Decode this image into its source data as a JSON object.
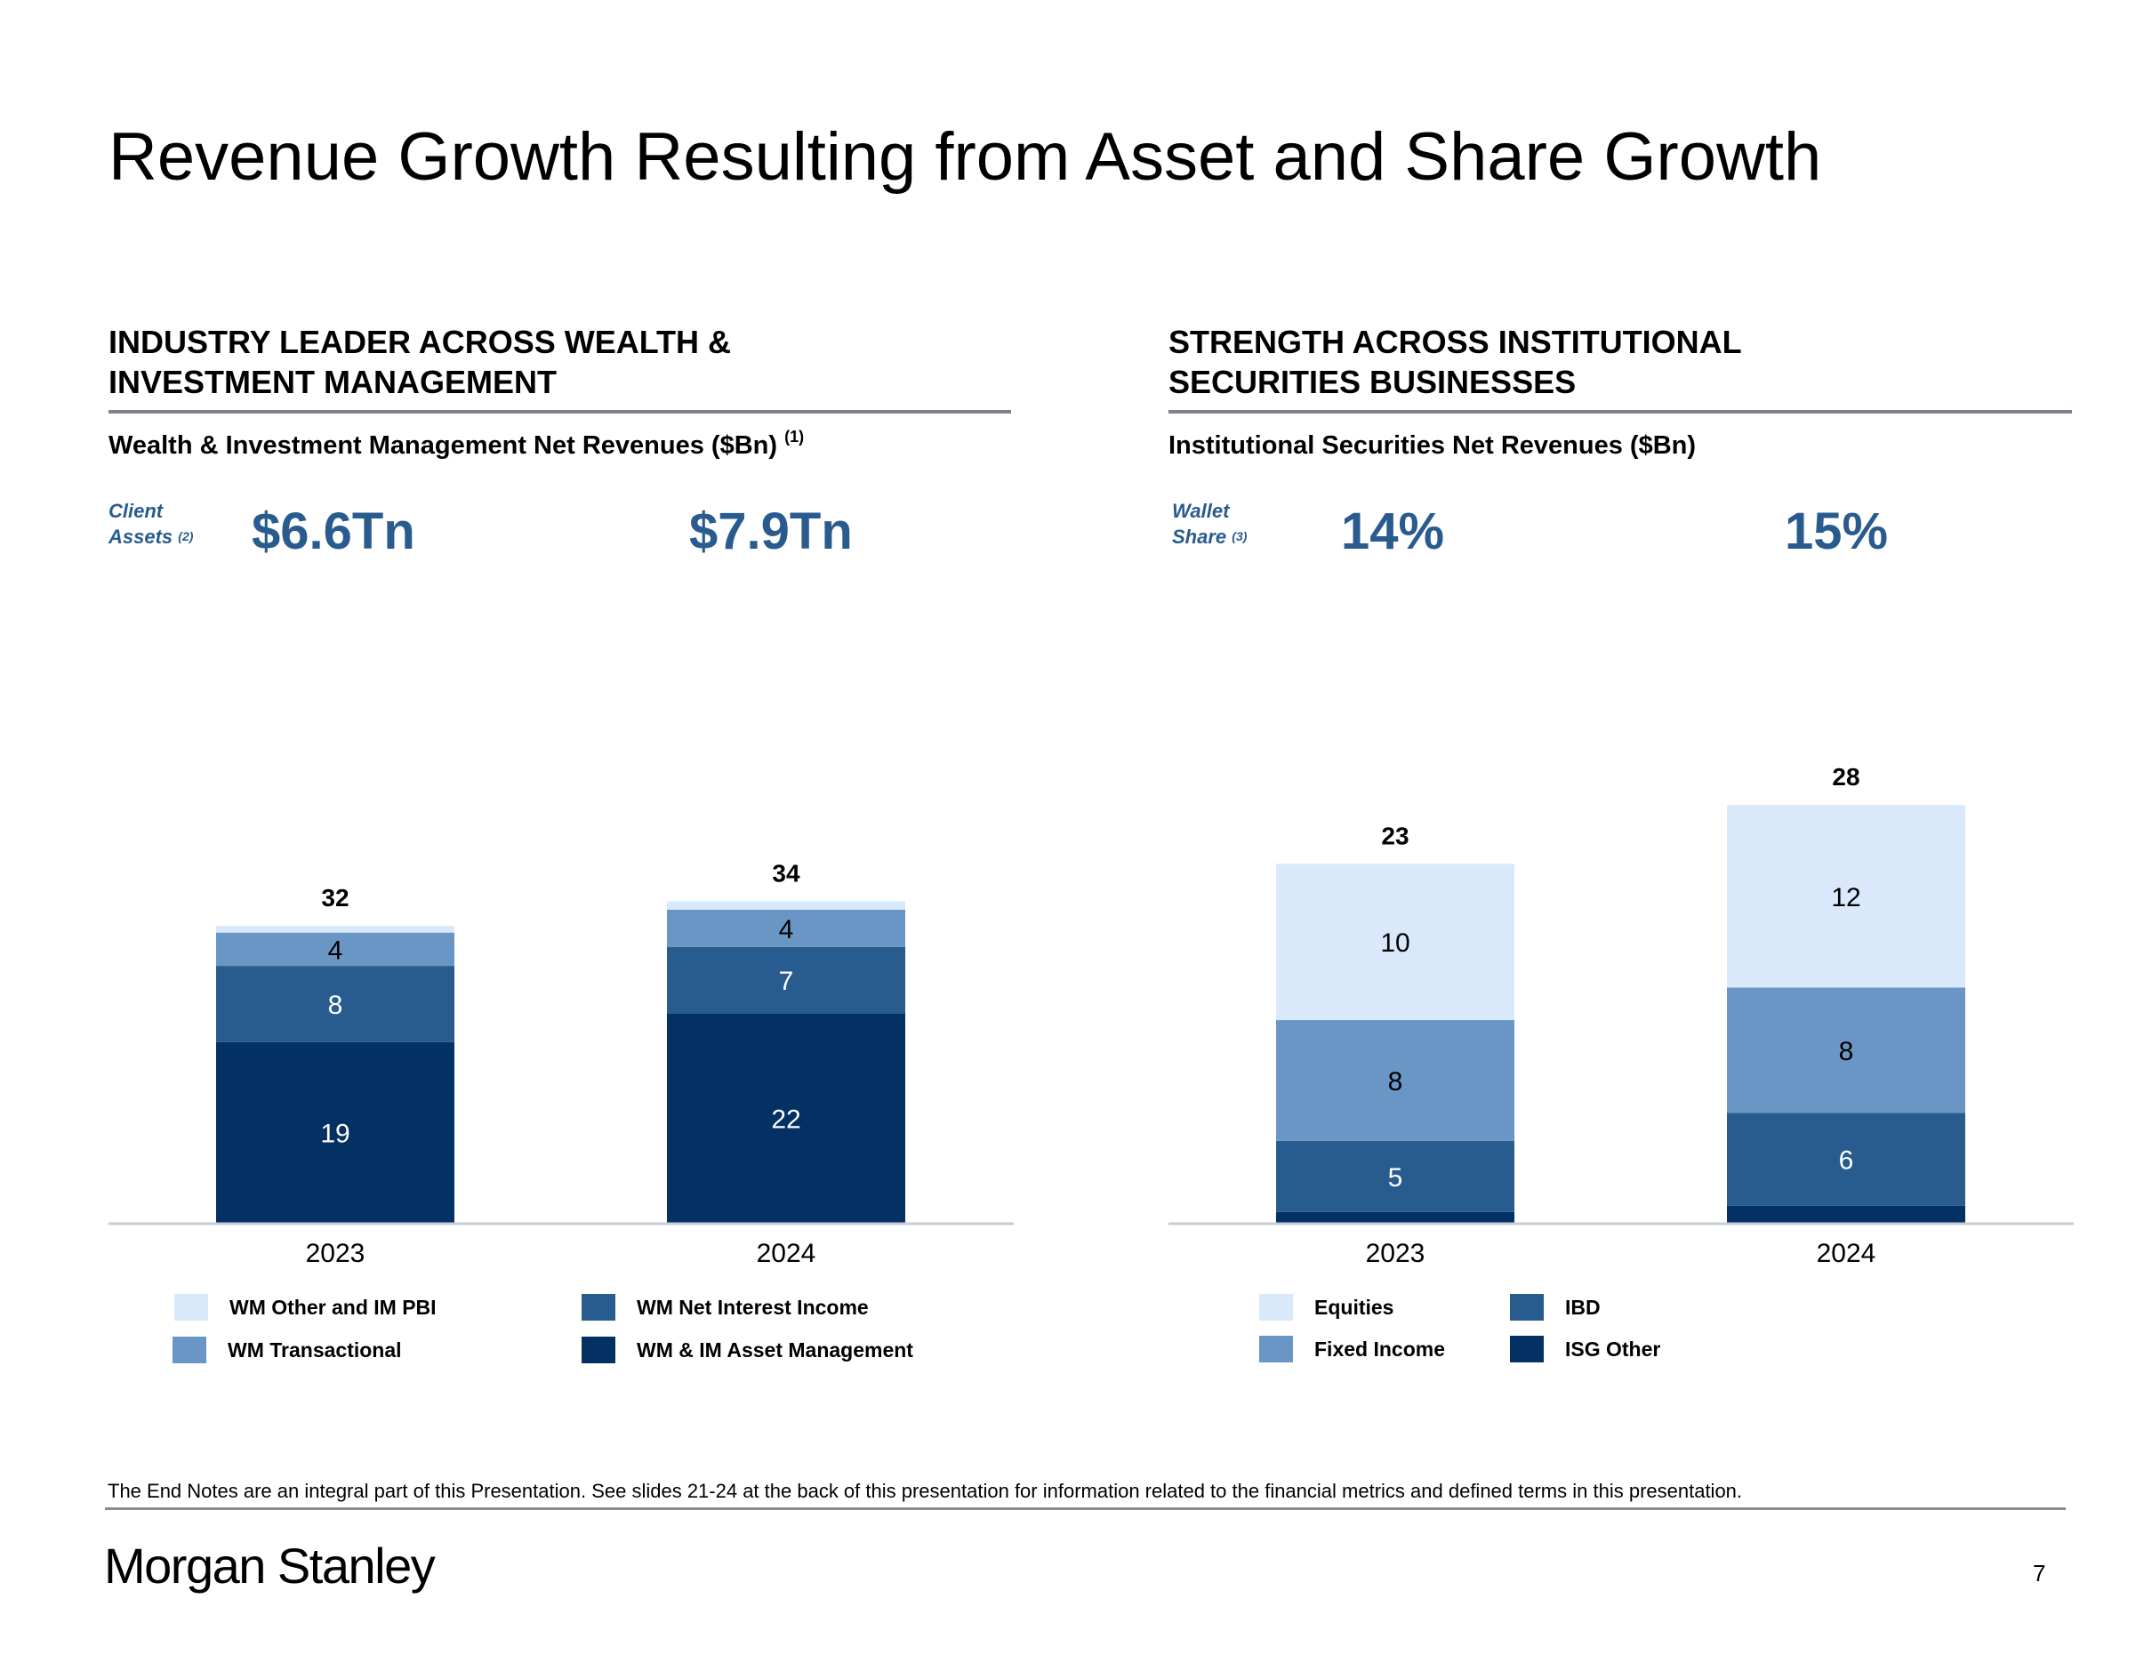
{
  "page": {
    "title": "Revenue Growth Resulting from Asset and Share Growth",
    "footnote": "The End Notes are an integral part of this Presentation. See slides 21-24 at the back of this presentation for information related to the financial metrics and defined terms in this presentation.",
    "brand": "Morgan Stanley",
    "page_number": "7"
  },
  "left": {
    "heading_line1": "INDUSTRY LEADER ACROSS WEALTH &",
    "heading_line2": "INVESTMENT MANAGEMENT",
    "subheading": "Wealth & Investment Management Net Revenues ($Bn)",
    "subheading_note": "(1)",
    "kpi_label_line1": "Client",
    "kpi_label_line2": "Assets",
    "kpi_label_note": "(2)",
    "kpi_values": [
      "$6.6Tn",
      "$7.9Tn"
    ]
  },
  "right": {
    "heading_line1": "STRENGTH ACROSS INSTITUTIONAL",
    "heading_line2": "SECURITIES BUSINESSES",
    "subheading": "Institutional Securities Net Revenues ($Bn)",
    "kpi_label_line1": "Wallet",
    "kpi_label_line2": "Share",
    "kpi_label_note": "(3)",
    "kpi_values": [
      "14%",
      "15%"
    ]
  },
  "chart_data": [
    {
      "type": "bar",
      "stacked": true,
      "title": "Wealth & Investment Management Net Revenues ($Bn)",
      "xlabel": "",
      "ylabel": "",
      "categories": [
        "2023",
        "2024"
      ],
      "totals": [
        32,
        34
      ],
      "grid": false,
      "legend_position": "bottom",
      "series": [
        {
          "name": "WM & IM Asset Management",
          "values": [
            19,
            22
          ],
          "labels": [
            "19",
            "22"
          ],
          "color": "#033163",
          "label_color": "#ffffff"
        },
        {
          "name": "WM Net Interest Income",
          "values": [
            8,
            7
          ],
          "labels": [
            "8",
            "7"
          ],
          "color": "#285c8e",
          "label_color": "#ffffff"
        },
        {
          "name": "WM Transactional",
          "values": [
            3.5,
            3.9
          ],
          "labels": [
            "4",
            "4"
          ],
          "color": "#6a96c5",
          "label_color": "#000000"
        },
        {
          "name": "WM Other and IM PBI",
          "values": [
            0.7,
            0.9
          ],
          "labels": [
            "",
            ""
          ],
          "color": "#d9e9fb",
          "label_color": "#000000"
        }
      ],
      "legend": [
        {
          "name": "WM Other and IM PBI",
          "color": "#d9e9fb"
        },
        {
          "name": "WM Net Interest Income",
          "color": "#285c8e"
        },
        {
          "name": "WM Transactional",
          "color": "#6a96c5"
        },
        {
          "name": "WM & IM Asset Management",
          "color": "#033163"
        }
      ]
    },
    {
      "type": "bar",
      "stacked": true,
      "title": "Institutional Securities Net Revenues ($Bn)",
      "xlabel": "",
      "ylabel": "",
      "categories": [
        "2023",
        "2024"
      ],
      "totals": [
        23,
        28
      ],
      "grid": false,
      "legend_position": "bottom",
      "series": [
        {
          "name": "ISG Other",
          "values": [
            0.7,
            1.1
          ],
          "labels": [
            "",
            ""
          ],
          "color": "#033163",
          "label_color": "#ffffff"
        },
        {
          "name": "IBD",
          "values": [
            4.6,
            6.0
          ],
          "labels": [
            "5",
            "6"
          ],
          "color": "#285c8e",
          "label_color": "#ffffff"
        },
        {
          "name": "Fixed Income",
          "values": [
            7.8,
            8.1
          ],
          "labels": [
            "8",
            "8"
          ],
          "color": "#6a96c5",
          "label_color": "#000000"
        },
        {
          "name": "Equities",
          "values": [
            10.1,
            11.8
          ],
          "labels": [
            "10",
            "12"
          ],
          "color": "#d9e9fb",
          "label_color": "#000000"
        }
      ],
      "legend": [
        {
          "name": "Equities",
          "color": "#d9e9fb"
        },
        {
          "name": "IBD",
          "color": "#285c8e"
        },
        {
          "name": "Fixed Income",
          "color": "#6a96c5"
        },
        {
          "name": "ISG Other",
          "color": "#033163"
        }
      ]
    }
  ]
}
